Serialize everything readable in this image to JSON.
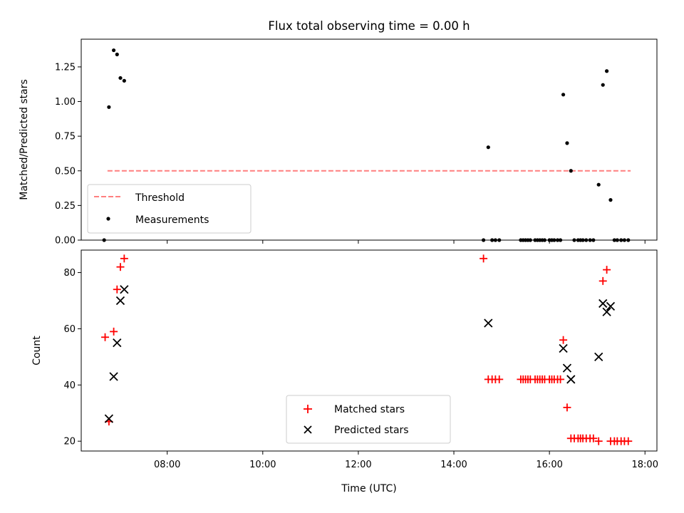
{
  "title": "Flux total observing time = 0.00 h",
  "chart_data": [
    {
      "type": "scatter",
      "ylabel": "Matched/Predicted stars",
      "xlim": [
        6.2,
        18.25
      ],
      "ylim": [
        0.0,
        1.45
      ],
      "yticks": [
        0.0,
        0.25,
        0.5,
        0.75,
        1.0,
        1.25
      ],
      "ytick_labels": [
        "0.00",
        "0.25",
        "0.50",
        "0.75",
        "1.00",
        "1.25"
      ],
      "series": [
        {
          "name": "Threshold",
          "kind": "dashed-line",
          "color": "#ff7f7f",
          "x": [
            6.75,
            17.7
          ],
          "y": [
            0.5,
            0.5
          ]
        },
        {
          "name": "Measurements",
          "kind": "points",
          "color": "#000000",
          "x": [
            6.68,
            6.78,
            6.88,
            6.95,
            7.02,
            7.1,
            14.62,
            14.72,
            14.8,
            14.87,
            14.95,
            15.4,
            15.45,
            15.5,
            15.55,
            15.6,
            15.7,
            15.75,
            15.8,
            15.85,
            15.9,
            16.0,
            16.05,
            16.1,
            16.17,
            16.23,
            16.29,
            16.37,
            16.45,
            16.52,
            16.6,
            16.65,
            16.7,
            16.77,
            16.85,
            16.92,
            17.03,
            17.12,
            17.2,
            17.28,
            17.36,
            17.42,
            17.5,
            17.57,
            17.65
          ],
          "y": [
            0.0,
            0.96,
            1.37,
            1.34,
            1.17,
            1.15,
            0.0,
            0.67,
            0.0,
            0.0,
            0.0,
            0.0,
            0.0,
            0.0,
            0.0,
            0.0,
            0.0,
            0.0,
            0.0,
            0.0,
            0.0,
            0.0,
            0.0,
            0.0,
            0.0,
            0.0,
            1.05,
            0.7,
            0.5,
            0.0,
            0.0,
            0.0,
            0.0,
            0.0,
            0.0,
            0.0,
            0.4,
            1.12,
            1.22,
            0.29,
            0.0,
            0.0,
            0.0,
            0.0,
            0.0
          ]
        }
      ],
      "legend": {
        "location": "lower-left",
        "entries": [
          "Threshold",
          "Measurements"
        ]
      }
    },
    {
      "type": "scatter",
      "xlabel": "Time (UTC)",
      "ylabel": "Count",
      "xlim": [
        6.2,
        18.25
      ],
      "ylim": [
        16.5,
        88
      ],
      "xticks": [
        8,
        10,
        12,
        14,
        16,
        18
      ],
      "xtick_labels": [
        "08:00",
        "10:00",
        "12:00",
        "14:00",
        "16:00",
        "18:00"
      ],
      "yticks": [
        20,
        40,
        60,
        80
      ],
      "ytick_labels": [
        "20",
        "40",
        "60",
        "80"
      ],
      "series": [
        {
          "name": "Matched stars",
          "marker": "plus",
          "color": "#ff0000",
          "x": [
            6.7,
            6.78,
            6.88,
            6.95,
            7.02,
            7.1,
            14.62,
            14.72,
            14.8,
            14.87,
            14.95,
            15.4,
            15.45,
            15.5,
            15.55,
            15.6,
            15.7,
            15.75,
            15.8,
            15.85,
            15.9,
            16.0,
            16.05,
            16.1,
            16.17,
            16.23,
            16.29,
            16.37,
            16.45,
            16.52,
            16.6,
            16.65,
            16.7,
            16.77,
            16.85,
            16.92,
            17.03,
            17.12,
            17.2,
            17.28,
            17.36,
            17.42,
            17.5,
            17.57,
            17.65
          ],
          "y": [
            57,
            27,
            59,
            74,
            82,
            85,
            85,
            42,
            42,
            42,
            42,
            42,
            42,
            42,
            42,
            42,
            42,
            42,
            42,
            42,
            42,
            42,
            42,
            42,
            42,
            42,
            56,
            32,
            21,
            21,
            21,
            21,
            21,
            21,
            21,
            21,
            20,
            77,
            81,
            20,
            20,
            20,
            20,
            20,
            20
          ]
        },
        {
          "name": "Predicted stars",
          "marker": "x",
          "color": "#000000",
          "x": [
            6.78,
            6.88,
            6.95,
            7.02,
            7.1,
            14.72,
            16.29,
            16.37,
            16.45,
            17.03,
            17.12,
            17.2,
            17.28
          ],
          "y": [
            28,
            43,
            55,
            70,
            74,
            62,
            53,
            46,
            42,
            50,
            69,
            66,
            68
          ]
        }
      ],
      "legend": {
        "location": "lower-center",
        "entries": [
          "Matched stars",
          "Predicted stars"
        ]
      }
    }
  ]
}
